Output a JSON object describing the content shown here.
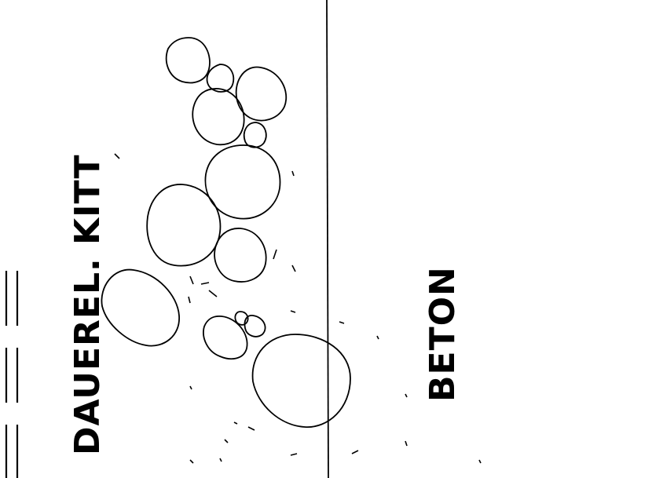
{
  "labels": {
    "left_material": "DAUEREL. KITT",
    "right_material": "BETON"
  },
  "colors": {
    "ink": "#000000",
    "paper": "#ffffff"
  }
}
